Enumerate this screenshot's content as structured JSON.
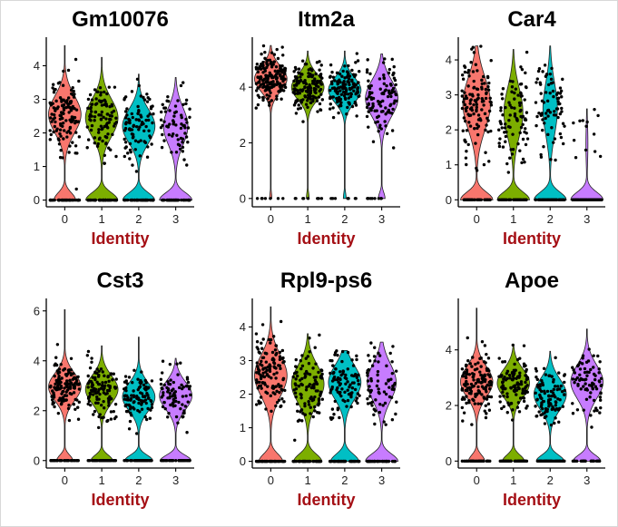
{
  "colors": {
    "identity": [
      "#F8766D",
      "#7CAE00",
      "#00BFC4",
      "#C77CFF"
    ],
    "axis_title": "#A50F15"
  },
  "chart_data": [
    {
      "type": "violin",
      "title": "Gm10076",
      "xlabel": "Identity",
      "categories": [
        "0",
        "1",
        "2",
        "3"
      ],
      "ylim": [
        -0.2,
        4.85
      ],
      "yticks": [
        0,
        1,
        2,
        3,
        4
      ],
      "series": [
        {
          "category": "0",
          "zero_fraction": 0.25,
          "nonzero_mean": 2.55,
          "nonzero_sd": 0.55,
          "max": 4.6,
          "n_points": 170
        },
        {
          "category": "1",
          "zero_fraction": 0.33,
          "nonzero_mean": 2.45,
          "nonzero_sd": 0.55,
          "max": 4.25,
          "n_points": 150
        },
        {
          "category": "2",
          "zero_fraction": 0.35,
          "nonzero_mean": 2.2,
          "nonzero_sd": 0.5,
          "max": 3.75,
          "n_points": 140
        },
        {
          "category": "3",
          "zero_fraction": 0.4,
          "nonzero_mean": 2.2,
          "nonzero_sd": 0.55,
          "max": 3.65,
          "n_points": 110
        }
      ]
    },
    {
      "type": "violin",
      "title": "Itm2a",
      "xlabel": "Identity",
      "categories": [
        "0",
        "1",
        "2",
        "3"
      ],
      "ylim": [
        -0.3,
        5.8
      ],
      "yticks": [
        0,
        2,
        4
      ],
      "series": [
        {
          "category": "0",
          "zero_fraction": 0.04,
          "nonzero_mean": 4.3,
          "nonzero_sd": 0.45,
          "max": 5.5,
          "n_points": 170
        },
        {
          "category": "1",
          "zero_fraction": 0.05,
          "nonzero_mean": 4.0,
          "nonzero_sd": 0.45,
          "max": 5.3,
          "n_points": 150
        },
        {
          "category": "2",
          "zero_fraction": 0.05,
          "nonzero_mean": 3.9,
          "nonzero_sd": 0.45,
          "max": 5.3,
          "n_points": 140
        },
        {
          "category": "3",
          "zero_fraction": 0.08,
          "nonzero_mean": 3.6,
          "nonzero_sd": 0.65,
          "max": 5.2,
          "n_points": 110
        }
      ]
    },
    {
      "type": "violin",
      "title": "Car4",
      "xlabel": "Identity",
      "categories": [
        "0",
        "1",
        "2",
        "3"
      ],
      "ylim": [
        -0.2,
        4.65
      ],
      "yticks": [
        0,
        1,
        2,
        3,
        4
      ],
      "series": [
        {
          "category": "0",
          "zero_fraction": 0.3,
          "nonzero_mean": 2.75,
          "nonzero_sd": 0.75,
          "max": 4.4,
          "n_points": 170
        },
        {
          "category": "1",
          "zero_fraction": 0.4,
          "nonzero_mean": 2.5,
          "nonzero_sd": 0.7,
          "max": 4.3,
          "n_points": 150
        },
        {
          "category": "2",
          "zero_fraction": 0.45,
          "nonzero_mean": 2.6,
          "nonzero_sd": 0.75,
          "max": 4.4,
          "n_points": 140
        },
        {
          "category": "3",
          "zero_fraction": 0.88,
          "nonzero_mean": 1.6,
          "nonzero_sd": 0.6,
          "max": 2.6,
          "n_points": 110
        }
      ]
    },
    {
      "type": "violin",
      "title": "Cst3",
      "xlabel": "Identity",
      "categories": [
        "0",
        "1",
        "2",
        "3"
      ],
      "ylim": [
        -0.3,
        6.5
      ],
      "yticks": [
        0,
        2,
        4,
        6
      ],
      "series": [
        {
          "category": "0",
          "zero_fraction": 0.2,
          "nonzero_mean": 2.95,
          "nonzero_sd": 0.55,
          "max": 6.05,
          "n_points": 170
        },
        {
          "category": "1",
          "zero_fraction": 0.25,
          "nonzero_mean": 2.85,
          "nonzero_sd": 0.55,
          "max": 4.6,
          "n_points": 150
        },
        {
          "category": "2",
          "zero_fraction": 0.3,
          "nonzero_mean": 2.55,
          "nonzero_sd": 0.55,
          "max": 4.95,
          "n_points": 140
        },
        {
          "category": "3",
          "zero_fraction": 0.32,
          "nonzero_mean": 2.6,
          "nonzero_sd": 0.55,
          "max": 4.1,
          "n_points": 110
        }
      ]
    },
    {
      "type": "violin",
      "title": "Rpl9-ps6",
      "xlabel": "Identity",
      "categories": [
        "0",
        "1",
        "2",
        "3"
      ],
      "ylim": [
        -0.2,
        4.85
      ],
      "yticks": [
        0,
        1,
        2,
        3,
        4
      ],
      "series": [
        {
          "category": "0",
          "zero_fraction": 0.25,
          "nonzero_mean": 2.55,
          "nonzero_sd": 0.6,
          "max": 4.6,
          "n_points": 170
        },
        {
          "category": "1",
          "zero_fraction": 0.3,
          "nonzero_mean": 2.3,
          "nonzero_sd": 0.55,
          "max": 3.8,
          "n_points": 150
        },
        {
          "category": "2",
          "zero_fraction": 0.32,
          "nonzero_mean": 2.35,
          "nonzero_sd": 0.5,
          "max": 3.3,
          "n_points": 140
        },
        {
          "category": "3",
          "zero_fraction": 0.36,
          "nonzero_mean": 2.35,
          "nonzero_sd": 0.55,
          "max": 3.55,
          "n_points": 110
        }
      ]
    },
    {
      "type": "violin",
      "title": "Apoe",
      "xlabel": "Identity",
      "categories": [
        "0",
        "1",
        "2",
        "3"
      ],
      "ylim": [
        -0.25,
        5.85
      ],
      "yticks": [
        0,
        2,
        4
      ],
      "series": [
        {
          "category": "0",
          "zero_fraction": 0.2,
          "nonzero_mean": 2.85,
          "nonzero_sd": 0.55,
          "max": 5.5,
          "n_points": 170
        },
        {
          "category": "1",
          "zero_fraction": 0.27,
          "nonzero_mean": 2.8,
          "nonzero_sd": 0.5,
          "max": 4.2,
          "n_points": 150
        },
        {
          "category": "2",
          "zero_fraction": 0.3,
          "nonzero_mean": 2.4,
          "nonzero_sd": 0.55,
          "max": 3.95,
          "n_points": 140
        },
        {
          "category": "3",
          "zero_fraction": 0.28,
          "nonzero_mean": 2.85,
          "nonzero_sd": 0.6,
          "max": 4.75,
          "n_points": 110
        }
      ]
    }
  ]
}
